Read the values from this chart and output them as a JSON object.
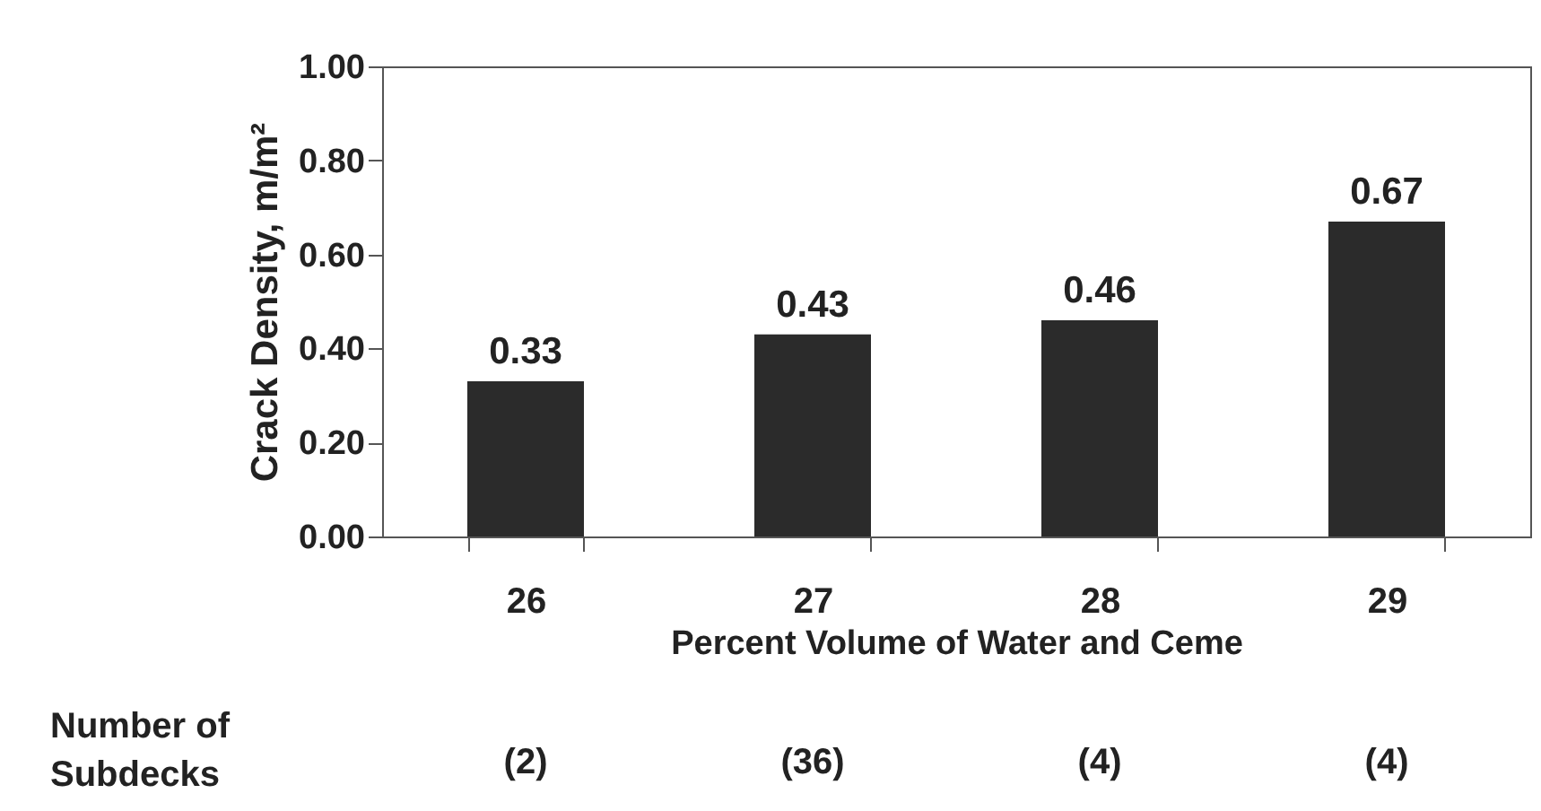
{
  "chart_data": {
    "type": "bar",
    "xlabel": "Percent Volume of Water and Ceme",
    "ylabel": "Crack Density, m/m²",
    "categories": [
      "26",
      "27",
      "28",
      "29"
    ],
    "values": [
      0.33,
      0.43,
      0.46,
      0.67
    ],
    "color": "#2b2b2b",
    "ylim": [
      0,
      1
    ],
    "yticks": [
      {
        "value": 0,
        "label": "0.00"
      },
      {
        "value": 0.2,
        "label": "0.20"
      },
      {
        "value": 0.4,
        "label": "0.40"
      },
      {
        "value": 0.6,
        "label": "0.60"
      },
      {
        "value": 0.8,
        "label": "0.80"
      },
      {
        "value": 1,
        "label": "1.00"
      }
    ],
    "data_labels": true,
    "value_labels": [
      "0.33",
      "0.43",
      "0.46",
      "0.67"
    ],
    "grid": false,
    "annotations": [
      "Number of\nSubdecks",
      "(2)",
      "(36)",
      "(4)",
      "(4)"
    ]
  }
}
